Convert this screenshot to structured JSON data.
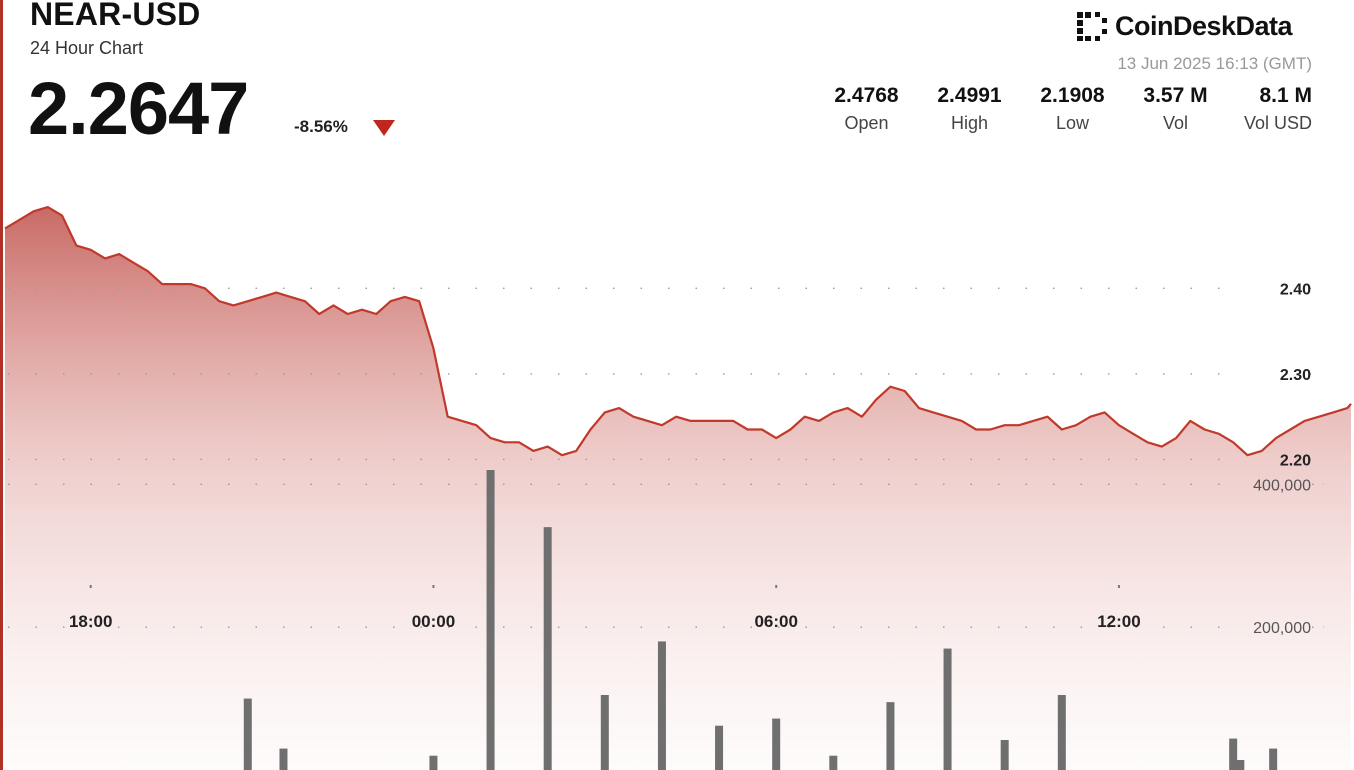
{
  "header": {
    "symbol": "NEAR-USD",
    "subtitle": "24 Hour Chart",
    "price": "2.2647",
    "change": "-8.56%",
    "change_direction": "down",
    "brand": "CoinDeskData",
    "timestamp": "13 Jun 2025 16:13 (GMT)"
  },
  "stats": [
    {
      "value": "2.4768",
      "label": "Open"
    },
    {
      "value": "2.4991",
      "label": "High"
    },
    {
      "value": "2.1908",
      "label": "Low"
    },
    {
      "value": "3.57 M",
      "label": "Vol"
    },
    {
      "value": "8.1 M",
      "label": "Vol USD"
    }
  ],
  "colors": {
    "line": "#c0392b",
    "area_top": "#c0504a",
    "volume_bar": "#6f6f6f",
    "accent_down": "#c0271c"
  },
  "chart_data": {
    "type": "area",
    "price_ticks": [
      2.4,
      2.3,
      2.2
    ],
    "price_tick_labels": [
      "2.40",
      "2.30",
      "2.20"
    ],
    "price_ylim": [
      2.1,
      2.55
    ],
    "volume_ticks": [
      400000,
      200000
    ],
    "volume_tick_labels": [
      "400,000",
      "200,000"
    ],
    "volume_ylim": [
      0,
      560000
    ],
    "x_ticks": [
      6,
      30,
      54,
      78
    ],
    "x_tick_labels": [
      "18:00",
      "00:00",
      "06:00",
      "12:00"
    ],
    "xlim": [
      0,
      94.25
    ],
    "grid": "dotted horizontal",
    "series": [
      {
        "x": [
          0,
          1,
          2,
          3,
          4,
          5,
          6,
          7,
          8,
          9,
          10,
          11,
          12,
          13,
          14,
          15,
          16,
          17,
          18,
          19,
          20,
          21,
          22,
          23,
          24,
          25,
          26,
          27,
          28,
          29,
          30,
          31,
          32,
          33,
          34,
          35,
          36,
          37,
          38,
          39,
          40,
          41,
          42,
          43,
          44,
          45,
          46,
          47,
          48,
          49,
          50,
          51,
          52,
          53,
          54,
          55,
          56,
          57,
          58,
          59,
          60,
          61,
          62,
          63,
          64,
          65,
          66,
          67,
          68,
          69,
          70,
          71,
          72,
          73,
          74,
          75,
          76,
          77,
          78,
          79,
          80,
          81,
          82,
          83,
          84,
          85,
          86,
          87,
          88,
          89,
          90,
          91,
          92,
          93,
          94,
          94.25
        ],
        "values": [
          2.47,
          2.48,
          2.49,
          2.495,
          2.485,
          2.45,
          2.445,
          2.435,
          2.44,
          2.43,
          2.42,
          2.405,
          2.405,
          2.405,
          2.4,
          2.385,
          2.38,
          2.385,
          2.39,
          2.395,
          2.39,
          2.385,
          2.37,
          2.38,
          2.37,
          2.375,
          2.37,
          2.385,
          2.39,
          2.385,
          2.33,
          2.25,
          2.245,
          2.24,
          2.225,
          2.22,
          2.22,
          2.21,
          2.215,
          2.205,
          2.21,
          2.235,
          2.255,
          2.26,
          2.25,
          2.245,
          2.24,
          2.25,
          2.245,
          2.245,
          2.245,
          2.245,
          2.235,
          2.235,
          2.225,
          2.235,
          2.25,
          2.245,
          2.255,
          2.26,
          2.25,
          2.27,
          2.285,
          2.28,
          2.26,
          2.255,
          2.25,
          2.245,
          2.235,
          2.235,
          2.24,
          2.24,
          2.245,
          2.25,
          2.235,
          2.24,
          2.25,
          2.255,
          2.24,
          2.23,
          2.22,
          2.215,
          2.225,
          2.245,
          2.235,
          2.23,
          2.22,
          2.205,
          2.21,
          2.225,
          2.235,
          2.245,
          2.25,
          2.255,
          2.26,
          2.265
        ]
      }
    ],
    "volume_series": {
      "x": [
        17,
        19.5,
        30,
        34,
        38,
        42,
        46,
        50,
        54,
        58,
        62,
        66,
        70,
        74,
        86,
        86.5,
        88.8
      ],
      "values": [
        100000,
        30000,
        20000,
        420000,
        340000,
        105000,
        180000,
        62000,
        72000,
        20000,
        95000,
        170000,
        42000,
        105000,
        44000,
        14000,
        30000
      ]
    }
  }
}
